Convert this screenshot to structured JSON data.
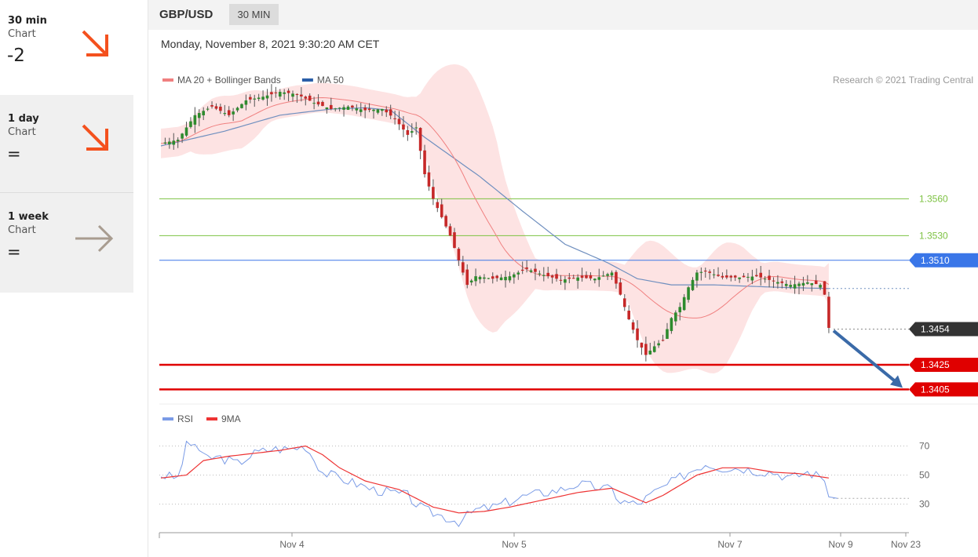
{
  "sidebar": {
    "items": [
      {
        "period": "30 min",
        "label": "Chart",
        "score": "-2",
        "arrow": "down-right-arrow-icon",
        "arrow_color": "#f4511e"
      },
      {
        "period": "1 day",
        "label": "Chart",
        "score": "=",
        "arrow": "down-right-arrow-icon",
        "arrow_color": "#f4511e"
      },
      {
        "period": "1 week",
        "label": "Chart",
        "score": "=",
        "arrow": "right-arrow-icon",
        "arrow_color": "#a89c90"
      }
    ]
  },
  "header": {
    "pair": "GBP/USD",
    "timeframe": "30 MIN",
    "datetime": "Monday, November 8, 2021 9:30:20 AM CET"
  },
  "colors": {
    "resistance": "#7dc242",
    "support": "#e00000",
    "pivot": "#3a76e8",
    "current": "#333333",
    "ma20": "#f08080",
    "ma50": "#6f8fbf",
    "band_fill": "#fde3e3",
    "up_candle": "#2e8b2e",
    "down_candle": "#c62828",
    "rsi": "#7a9be6",
    "rsi_ma": "#ee3333",
    "target_arrow": "#3a6aa8"
  },
  "chart_data": [
    {
      "type": "candlestick",
      "legend": [
        {
          "name": "MA 20 + Bollinger Bands",
          "color": "#f08080"
        },
        {
          "name": "MA 50",
          "color": "#2a5ea8"
        }
      ],
      "copyright": "Research © 2021 Trading Central",
      "ylim": [
        1.3395,
        1.364
      ],
      "levels": [
        {
          "value": 1.356,
          "label": "1.3560",
          "kind": "resistance"
        },
        {
          "value": 1.353,
          "label": "1.3530",
          "kind": "resistance"
        },
        {
          "value": 1.351,
          "label": "1.3510",
          "kind": "pivot"
        },
        {
          "value": 1.3454,
          "label": "1.3454",
          "kind": "current"
        },
        {
          "value": 1.3425,
          "label": "1.3425",
          "kind": "support"
        },
        {
          "value": 1.3405,
          "label": "1.3405",
          "kind": "support"
        }
      ],
      "x_ticks": [
        "Nov 4",
        "Nov 5",
        "Nov 7",
        "Nov 9",
        "Nov 23"
      ],
      "close_path": [
        [
          0,
          1.3605
        ],
        [
          4,
          1.3608
        ],
        [
          8,
          1.3628
        ],
        [
          12,
          1.3635
        ],
        [
          16,
          1.3628
        ],
        [
          20,
          1.364
        ],
        [
          24,
          1.3643
        ],
        [
          28,
          1.3647
        ],
        [
          32,
          1.3645
        ],
        [
          36,
          1.3638
        ],
        [
          40,
          1.3633
        ],
        [
          44,
          1.3635
        ],
        [
          48,
          1.3632
        ],
        [
          52,
          1.3633
        ],
        [
          55,
          1.3625
        ],
        [
          58,
          1.3612
        ],
        [
          60,
          1.3618
        ],
        [
          62,
          1.358
        ],
        [
          64,
          1.356
        ],
        [
          66,
          1.3545
        ],
        [
          68,
          1.353
        ],
        [
          70,
          1.351
        ],
        [
          72,
          1.349
        ],
        [
          74,
          1.3497
        ],
        [
          78,
          1.3495
        ],
        [
          82,
          1.3497
        ],
        [
          86,
          1.3503
        ],
        [
          90,
          1.3498
        ],
        [
          94,
          1.3494
        ],
        [
          98,
          1.3496
        ],
        [
          102,
          1.3495
        ],
        [
          106,
          1.35
        ],
        [
          108,
          1.3482
        ],
        [
          110,
          1.3462
        ],
        [
          112,
          1.3445
        ],
        [
          114,
          1.3433
        ],
        [
          116,
          1.344
        ],
        [
          118,
          1.3445
        ],
        [
          120,
          1.3463
        ],
        [
          122,
          1.3472
        ],
        [
          124,
          1.3488
        ],
        [
          126,
          1.35
        ],
        [
          128,
          1.3501
        ],
        [
          132,
          1.3496
        ],
        [
          136,
          1.3496
        ],
        [
          140,
          1.3497
        ],
        [
          144,
          1.3493
        ],
        [
          148,
          1.349
        ],
        [
          152,
          1.3492
        ],
        [
          155,
          1.349
        ],
        [
          156,
          1.3482
        ],
        [
          157,
          1.3455
        ]
      ],
      "ma50_path": [
        [
          0,
          1.3603
        ],
        [
          15,
          1.3615
        ],
        [
          28,
          1.3628
        ],
        [
          40,
          1.3633
        ],
        [
          48,
          1.3634
        ],
        [
          54,
          1.3632
        ],
        [
          62,
          1.361
        ],
        [
          75,
          1.3578
        ],
        [
          85,
          1.355
        ],
        [
          95,
          1.3523
        ],
        [
          105,
          1.3508
        ],
        [
          112,
          1.3495
        ],
        [
          120,
          1.349
        ],
        [
          130,
          1.349
        ],
        [
          145,
          1.3488
        ],
        [
          157,
          1.3487
        ]
      ],
      "target": {
        "from": [
          157,
          1.3454
        ],
        "to": [
          170,
          1.3405
        ]
      }
    },
    {
      "type": "line",
      "legend": [
        {
          "name": "RSI",
          "color": "#7a9be6"
        },
        {
          "name": "9MA",
          "color": "#ee3333"
        }
      ],
      "ylim": [
        12,
        80
      ],
      "y_ticks": [
        70,
        50,
        30
      ],
      "rsi": [
        [
          0,
          50
        ],
        [
          4,
          48
        ],
        [
          6,
          70
        ],
        [
          8,
          72
        ],
        [
          10,
          62
        ],
        [
          14,
          62
        ],
        [
          18,
          58
        ],
        [
          22,
          65
        ],
        [
          26,
          68
        ],
        [
          30,
          68
        ],
        [
          34,
          70
        ],
        [
          38,
          52
        ],
        [
          42,
          48
        ],
        [
          46,
          44
        ],
        [
          50,
          40
        ],
        [
          54,
          38
        ],
        [
          58,
          36
        ],
        [
          60,
          30
        ],
        [
          62,
          26
        ],
        [
          66,
          22
        ],
        [
          70,
          18
        ],
        [
          74,
          26
        ],
        [
          78,
          28
        ],
        [
          82,
          32
        ],
        [
          86,
          36
        ],
        [
          90,
          38
        ],
        [
          94,
          40
        ],
        [
          98,
          44
        ],
        [
          102,
          42
        ],
        [
          106,
          40
        ],
        [
          108,
          32
        ],
        [
          112,
          30
        ],
        [
          116,
          38
        ],
        [
          120,
          45
        ],
        [
          124,
          52
        ],
        [
          128,
          58
        ],
        [
          132,
          55
        ],
        [
          136,
          55
        ],
        [
          140,
          53
        ],
        [
          144,
          52
        ],
        [
          148,
          48
        ],
        [
          152,
          52
        ],
        [
          156,
          48
        ],
        [
          157,
          35
        ],
        [
          159,
          34
        ]
      ],
      "rsi_ma": [
        [
          0,
          48
        ],
        [
          6,
          50
        ],
        [
          10,
          60
        ],
        [
          16,
          63
        ],
        [
          22,
          65
        ],
        [
          28,
          67
        ],
        [
          34,
          70
        ],
        [
          38,
          64
        ],
        [
          42,
          55
        ],
        [
          48,
          46
        ],
        [
          52,
          43
        ],
        [
          56,
          40
        ],
        [
          60,
          34
        ],
        [
          64,
          28
        ],
        [
          70,
          24
        ],
        [
          76,
          25
        ],
        [
          82,
          28
        ],
        [
          90,
          33
        ],
        [
          98,
          38
        ],
        [
          106,
          41
        ],
        [
          110,
          36
        ],
        [
          114,
          31
        ],
        [
          118,
          36
        ],
        [
          122,
          43
        ],
        [
          126,
          50
        ],
        [
          132,
          55
        ],
        [
          138,
          55
        ],
        [
          144,
          52
        ],
        [
          150,
          51
        ],
        [
          157,
          48
        ]
      ],
      "last_value": 34
    }
  ]
}
